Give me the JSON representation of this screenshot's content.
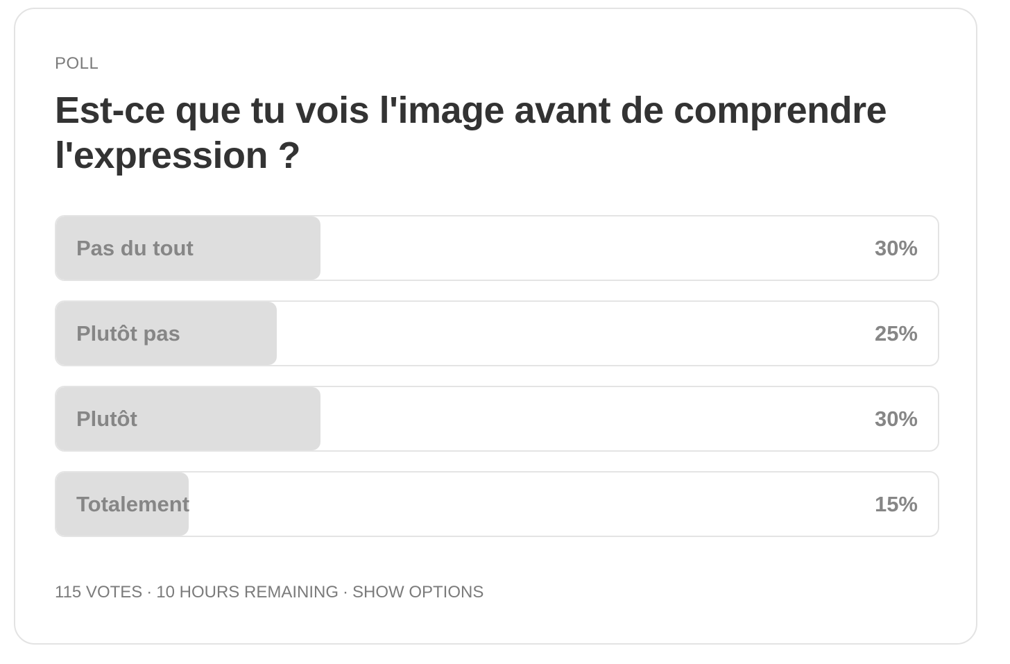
{
  "poll": {
    "label": "POLL",
    "question": "Est-ce que tu vois l'image avant de comprendre l'expression ?",
    "options": [
      {
        "label": "Pas du tout",
        "percent": "30%",
        "fraction": 0.3
      },
      {
        "label": "Plutôt pas",
        "percent": "25%",
        "fraction": 0.25
      },
      {
        "label": "Plutôt",
        "percent": "30%",
        "fraction": 0.3
      },
      {
        "label": "Totalement",
        "percent": "15%",
        "fraction": 0.15
      }
    ],
    "footer": {
      "votes": "115 VOTES",
      "separator": "·",
      "remaining": "10 HOURS REMAINING",
      "show_options": "SHOW OPTIONS"
    }
  },
  "colors": {
    "fill": "#dedede",
    "border": "#e4e4e4",
    "muted_text": "#7b7b7b",
    "question_text": "#333333"
  }
}
